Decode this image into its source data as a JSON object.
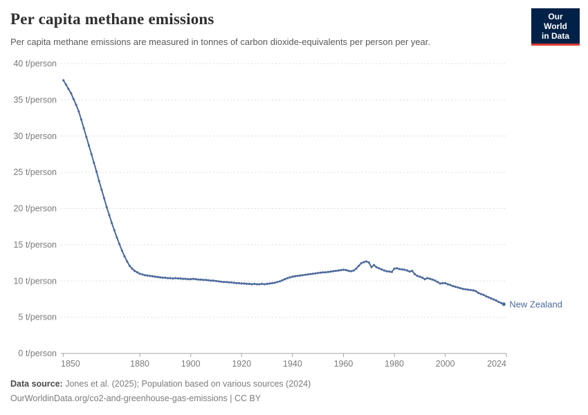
{
  "header": {
    "title": "Per capita methane emissions",
    "subtitle": "Per capita methane emissions are measured in tonnes of carbon dioxide-equivalents per person per year.",
    "logo": {
      "line1": "Our World",
      "line2": "in Data",
      "bg_color": "#002147",
      "accent_color": "#dc3d33"
    }
  },
  "chart_data": {
    "type": "line",
    "title": "Per capita methane emissions",
    "unit": "t/person",
    "ylim": [
      0,
      40
    ],
    "yticks": [
      0,
      5,
      10,
      15,
      20,
      25,
      30,
      35,
      40
    ],
    "ytick_suffix": " t/person",
    "xticks": [
      1850,
      1880,
      1900,
      1920,
      1940,
      1960,
      1980,
      2000,
      2024
    ],
    "x_domain": [
      1849,
      2024
    ],
    "grid": "horizontal-dashed",
    "legend_position": "end-of-line-label",
    "x_start": 1850,
    "x_step": 1,
    "series": [
      {
        "name": "New Zealand",
        "color": "#4C6A9C",
        "values": [
          37.7,
          37.1,
          36.5,
          35.9,
          35.1,
          34.3,
          33.4,
          32.3,
          31.1,
          29.9,
          28.7,
          27.5,
          26.3,
          25.1,
          23.8,
          22.6,
          21.4,
          20.2,
          19.1,
          18.0,
          17.0,
          16.0,
          15.1,
          14.2,
          13.4,
          12.7,
          12.1,
          11.7,
          11.4,
          11.2,
          11.0,
          10.9,
          10.8,
          10.75,
          10.7,
          10.65,
          10.6,
          10.55,
          10.5,
          10.45,
          10.45,
          10.4,
          10.4,
          10.35,
          10.4,
          10.35,
          10.35,
          10.3,
          10.3,
          10.25,
          10.25,
          10.3,
          10.25,
          10.2,
          10.2,
          10.15,
          10.15,
          10.1,
          10.05,
          10.05,
          10.0,
          9.95,
          9.9,
          9.85,
          9.85,
          9.8,
          9.8,
          9.75,
          9.7,
          9.7,
          9.65,
          9.65,
          9.6,
          9.6,
          9.55,
          9.6,
          9.55,
          9.55,
          9.6,
          9.55,
          9.6,
          9.65,
          9.7,
          9.75,
          9.85,
          9.95,
          10.1,
          10.25,
          10.4,
          10.5,
          10.6,
          10.65,
          10.7,
          10.75,
          10.8,
          10.85,
          10.9,
          10.95,
          11.0,
          11.05,
          11.1,
          11.15,
          11.2,
          11.2,
          11.25,
          11.3,
          11.35,
          11.4,
          11.45,
          11.5,
          11.55,
          11.5,
          11.4,
          11.35,
          11.45,
          11.7,
          12.1,
          12.45,
          12.6,
          12.7,
          12.55,
          11.9,
          12.2,
          11.9,
          11.75,
          11.6,
          11.45,
          11.35,
          11.3,
          11.25,
          11.7,
          11.75,
          11.65,
          11.6,
          11.55,
          11.45,
          11.3,
          11.4,
          10.95,
          10.7,
          10.6,
          10.45,
          10.25,
          10.4,
          10.3,
          10.2,
          10.05,
          9.85,
          9.65,
          9.7,
          9.7,
          9.55,
          9.45,
          9.3,
          9.2,
          9.1,
          9.0,
          8.9,
          8.85,
          8.8,
          8.75,
          8.7,
          8.6,
          8.35,
          8.2,
          8.1,
          7.9,
          7.75,
          7.6,
          7.45,
          7.3,
          7.1,
          6.95,
          6.8
        ]
      }
    ]
  },
  "footer": {
    "source_label": "Data source:",
    "source_text": " Jones et al. (2025); Population based on various sources (2024)",
    "link_text": "OurWorldinData.org/co2-and-greenhouse-gas-emissions",
    "license_text": " | CC BY"
  }
}
